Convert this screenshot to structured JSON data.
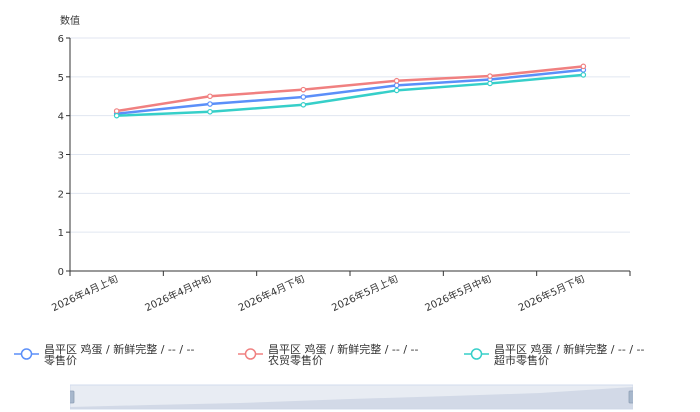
{
  "chart_data": {
    "type": "line",
    "ylabel": "数值",
    "xlabel": "",
    "title": "",
    "ylim": [
      0,
      6
    ],
    "yticks": [
      "0",
      "1",
      "2",
      "3",
      "4",
      "5",
      "6"
    ],
    "categories": [
      "2026年4月上旬",
      "2026年4月中旬",
      "2026年4月下旬",
      "2026年5月上旬",
      "2026年5月中旬",
      "2026年5月下旬"
    ],
    "grid": true,
    "legend_position": "bottom",
    "series": [
      {
        "name": "昌平区 鸡蛋 / 新鲜完整 / -- / -- 零售价",
        "color": "#5b8ff9",
        "values": [
          4.05,
          4.3,
          4.48,
          4.78,
          4.93,
          5.18
        ]
      },
      {
        "name": "昌平区 鸡蛋 / 新鲜完整 / -- / -- 农贸零售价",
        "color": "#f08080",
        "values": [
          4.12,
          4.5,
          4.67,
          4.9,
          5.02,
          5.27
        ]
      },
      {
        "name": "昌平区 鸡蛋 / 新鲜完整 / -- / -- 超市零售价",
        "color": "#36cfc9",
        "values": [
          4.0,
          4.1,
          4.28,
          4.65,
          4.83,
          5.05
        ]
      }
    ]
  }
}
